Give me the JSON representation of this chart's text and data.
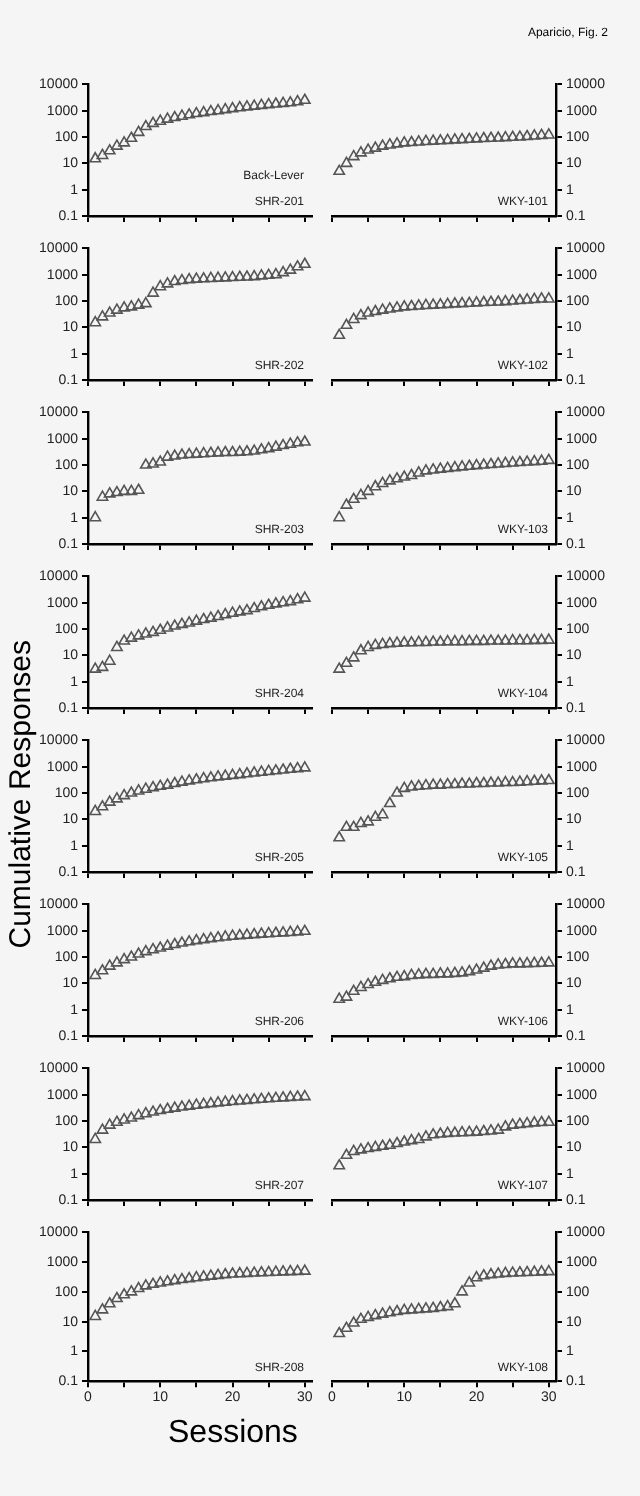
{
  "chart_data": [
    {
      "type": "scatter",
      "annotations": [
        "Back-Lever",
        "SHR-201"
      ],
      "x": [
        1,
        2,
        3,
        4,
        5,
        6,
        7,
        8,
        9,
        10,
        11,
        12,
        13,
        14,
        15,
        16,
        17,
        18,
        19,
        20,
        21,
        22,
        23,
        24,
        25,
        26,
        27,
        28,
        29,
        30
      ],
      "values": [
        15,
        20,
        30,
        45,
        60,
        90,
        150,
        250,
        330,
        400,
        480,
        550,
        620,
        700,
        780,
        850,
        930,
        1000,
        1100,
        1200,
        1300,
        1400,
        1500,
        1600,
        1700,
        1800,
        1900,
        2000,
        2200,
        2500
      ],
      "color": "#555555",
      "marker": "triangle",
      "log": "y",
      "xlim": [
        0,
        31
      ],
      "ylim": [
        0.1,
        10000
      ],
      "xticks": [
        {
          "value": 0,
          "label": null
        },
        {
          "value": 5,
          "label": null
        },
        {
          "value": 10,
          "label": null
        },
        {
          "value": 15,
          "label": null
        },
        {
          "value": 20,
          "label": null
        },
        {
          "value": 25,
          "label": null
        },
        {
          "value": 30,
          "label": null
        }
      ],
      "yticks": [
        0.1,
        1,
        10,
        100,
        1000,
        10000
      ],
      "tick_labels": "y"
    },
    {
      "type": "scatter",
      "title": "Aparicio, Fig. 2",
      "annotations": [
        "WKY-101"
      ],
      "x": [
        1,
        2,
        3,
        4,
        5,
        6,
        7,
        8,
        9,
        10,
        11,
        12,
        13,
        14,
        15,
        16,
        17,
        18,
        19,
        20,
        21,
        22,
        23,
        24,
        25,
        26,
        27,
        28,
        29,
        30
      ],
      "values": [
        5,
        10,
        18,
        25,
        32,
        38,
        45,
        50,
        55,
        60,
        62,
        65,
        68,
        70,
        72,
        75,
        78,
        80,
        82,
        85,
        88,
        90,
        92,
        95,
        98,
        100,
        105,
        110,
        115,
        120
      ],
      "color": "#555555",
      "marker": "triangle",
      "log": "y",
      "xlim": [
        0,
        31
      ],
      "ylim": [
        0.1,
        10000
      ],
      "xticks": [
        {
          "value": 0,
          "label": null
        },
        {
          "value": 5,
          "label": null
        },
        {
          "value": 10,
          "label": null
        },
        {
          "value": 15,
          "label": null
        },
        {
          "value": 20,
          "label": null
        },
        {
          "value": 25,
          "label": null
        },
        {
          "value": 30,
          "label": null
        }
      ],
      "yticks": [
        0.1,
        1,
        10,
        100,
        1000,
        10000
      ],
      "tick_labels": "y"
    },
    {
      "type": "scatter",
      "annotations": [
        "SHR-202"
      ],
      "x": [
        1,
        2,
        3,
        4,
        5,
        6,
        7,
        8,
        9,
        10,
        11,
        12,
        13,
        14,
        15,
        16,
        17,
        18,
        19,
        20,
        21,
        22,
        23,
        24,
        25,
        26,
        27,
        28,
        29,
        30
      ],
      "values": [
        15,
        25,
        35,
        45,
        55,
        60,
        70,
        80,
        200,
        350,
        450,
        550,
        600,
        650,
        680,
        700,
        720,
        740,
        760,
        780,
        800,
        820,
        850,
        900,
        950,
        1000,
        1200,
        1500,
        2000,
        2500
      ],
      "color": "#555555",
      "marker": "triangle",
      "log": "y",
      "xlim": [
        0,
        31
      ],
      "ylim": [
        0.1,
        10000
      ],
      "xticks": [
        {
          "value": 0,
          "label": null
        },
        {
          "value": 5,
          "label": null
        },
        {
          "value": 10,
          "label": null
        },
        {
          "value": 15,
          "label": null
        },
        {
          "value": 20,
          "label": null
        },
        {
          "value": 25,
          "label": null
        },
        {
          "value": 30,
          "label": null
        }
      ],
      "yticks": [
        0.1,
        1,
        10,
        100,
        1000,
        10000
      ],
      "tick_labels": "y"
    },
    {
      "type": "scatter",
      "annotations": [
        "WKY-102"
      ],
      "x": [
        1,
        2,
        3,
        4,
        5,
        6,
        7,
        8,
        9,
        10,
        11,
        12,
        13,
        14,
        15,
        16,
        17,
        18,
        19,
        20,
        21,
        22,
        23,
        24,
        25,
        26,
        27,
        28,
        29,
        30
      ],
      "values": [
        5,
        12,
        20,
        28,
        35,
        40,
        45,
        50,
        55,
        60,
        62,
        65,
        68,
        70,
        72,
        75,
        78,
        80,
        82,
        85,
        88,
        90,
        92,
        95,
        100,
        105,
        110,
        115,
        120,
        120
      ],
      "color": "#555555",
      "marker": "triangle",
      "log": "y",
      "xlim": [
        0,
        31
      ],
      "ylim": [
        0.1,
        10000
      ],
      "xticks": [
        {
          "value": 0,
          "label": null
        },
        {
          "value": 5,
          "label": null
        },
        {
          "value": 10,
          "label": null
        },
        {
          "value": 15,
          "label": null
        },
        {
          "value": 20,
          "label": null
        },
        {
          "value": 25,
          "label": null
        },
        {
          "value": 30,
          "label": null
        }
      ],
      "yticks": [
        0.1,
        1,
        10,
        100,
        1000,
        10000
      ],
      "tick_labels": "y"
    },
    {
      "type": "scatter",
      "annotations": [
        "SHR-203"
      ],
      "x": [
        1,
        2,
        3,
        4,
        5,
        6,
        7,
        8,
        9,
        10,
        11,
        12,
        13,
        14,
        15,
        16,
        17,
        18,
        19,
        20,
        21,
        22,
        23,
        24,
        25,
        26,
        27,
        28,
        29,
        30
      ],
      "values": [
        1,
        6,
        8,
        9,
        10,
        10,
        11,
        100,
        110,
        130,
        200,
        220,
        240,
        250,
        260,
        270,
        280,
        290,
        300,
        300,
        310,
        320,
        340,
        380,
        420,
        480,
        550,
        620,
        700,
        750
      ],
      "color": "#555555",
      "marker": "triangle",
      "log": "y",
      "xlim": [
        0,
        31
      ],
      "ylim": [
        0.1,
        10000
      ],
      "xticks": [
        {
          "value": 0,
          "label": null
        },
        {
          "value": 5,
          "label": null
        },
        {
          "value": 10,
          "label": null
        },
        {
          "value": 15,
          "label": null
        },
        {
          "value": 20,
          "label": null
        },
        {
          "value": 25,
          "label": null
        },
        {
          "value": 30,
          "label": null
        }
      ],
      "yticks": [
        0.1,
        1,
        10,
        100,
        1000,
        10000
      ],
      "tick_labels": "y"
    },
    {
      "type": "scatter",
      "annotations": [
        "WKY-103"
      ],
      "x": [
        1,
        2,
        3,
        4,
        5,
        6,
        7,
        8,
        9,
        10,
        11,
        12,
        13,
        14,
        15,
        16,
        17,
        18,
        19,
        20,
        21,
        22,
        23,
        24,
        25,
        26,
        27,
        28,
        29,
        30
      ],
      "values": [
        1,
        3,
        5,
        7,
        10,
        15,
        20,
        25,
        30,
        35,
        40,
        50,
        60,
        65,
        70,
        75,
        80,
        85,
        90,
        95,
        100,
        105,
        110,
        115,
        120,
        125,
        130,
        135,
        140,
        150
      ],
      "color": "#555555",
      "marker": "triangle",
      "log": "y",
      "xlim": [
        0,
        31
      ],
      "ylim": [
        0.1,
        10000
      ],
      "xticks": [
        {
          "value": 0,
          "label": null
        },
        {
          "value": 5,
          "label": null
        },
        {
          "value": 10,
          "label": null
        },
        {
          "value": 15,
          "label": null
        },
        {
          "value": 20,
          "label": null
        },
        {
          "value": 25,
          "label": null
        },
        {
          "value": 30,
          "label": null
        }
      ],
      "yticks": [
        0.1,
        1,
        10,
        100,
        1000,
        10000
      ],
      "tick_labels": "y"
    },
    {
      "type": "scatter",
      "annotations": [
        "SHR-204"
      ],
      "x": [
        1,
        2,
        3,
        4,
        5,
        6,
        7,
        8,
        9,
        10,
        11,
        12,
        13,
        14,
        15,
        16,
        17,
        18,
        19,
        20,
        21,
        22,
        23,
        24,
        25,
        26,
        27,
        28,
        29,
        30
      ],
      "values": [
        3,
        3.5,
        6,
        20,
        35,
        45,
        55,
        65,
        75,
        90,
        110,
        130,
        150,
        170,
        200,
        230,
        260,
        300,
        350,
        400,
        450,
        500,
        600,
        700,
        800,
        900,
        1000,
        1100,
        1300,
        1500
      ],
      "color": "#555555",
      "marker": "triangle",
      "log": "y",
      "xlim": [
        0,
        31
      ],
      "ylim": [
        0.1,
        10000
      ],
      "xticks": [
        {
          "value": 0,
          "label": null
        },
        {
          "value": 5,
          "label": null
        },
        {
          "value": 10,
          "label": null
        },
        {
          "value": 15,
          "label": null
        },
        {
          "value": 20,
          "label": null
        },
        {
          "value": 25,
          "label": null
        },
        {
          "value": 30,
          "label": null
        }
      ],
      "yticks": [
        0.1,
        1,
        10,
        100,
        1000,
        10000
      ],
      "tick_labels": "y"
    },
    {
      "type": "scatter",
      "annotations": [
        "WKY-104"
      ],
      "x": [
        1,
        2,
        3,
        4,
        5,
        6,
        7,
        8,
        9,
        10,
        11,
        12,
        13,
        14,
        15,
        16,
        17,
        18,
        19,
        20,
        21,
        22,
        23,
        24,
        25,
        26,
        27,
        28,
        29,
        30
      ],
      "values": [
        3,
        5,
        8,
        15,
        20,
        24,
        26,
        28,
        29,
        30,
        30,
        31,
        31,
        32,
        32,
        33,
        33,
        33,
        34,
        34,
        34,
        35,
        35,
        35,
        36,
        36,
        36,
        37,
        37,
        38
      ],
      "color": "#555555",
      "marker": "triangle",
      "log": "y",
      "xlim": [
        0,
        31
      ],
      "ylim": [
        0.1,
        10000
      ],
      "xticks": [
        {
          "value": 0,
          "label": null
        },
        {
          "value": 5,
          "label": null
        },
        {
          "value": 10,
          "label": null
        },
        {
          "value": 15,
          "label": null
        },
        {
          "value": 20,
          "label": null
        },
        {
          "value": 25,
          "label": null
        },
        {
          "value": 30,
          "label": null
        }
      ],
      "yticks": [
        0.1,
        1,
        10,
        100,
        1000,
        10000
      ],
      "tick_labels": "y"
    },
    {
      "type": "scatter",
      "ylabel": "Cumulative Responses",
      "annotations": [
        "SHR-205"
      ],
      "x": [
        1,
        2,
        3,
        4,
        5,
        6,
        7,
        8,
        9,
        10,
        11,
        12,
        13,
        14,
        15,
        16,
        17,
        18,
        19,
        20,
        21,
        22,
        23,
        24,
        25,
        26,
        27,
        28,
        29,
        30
      ],
      "values": [
        20,
        30,
        45,
        60,
        80,
        100,
        120,
        140,
        160,
        180,
        200,
        230,
        260,
        290,
        320,
        350,
        380,
        410,
        440,
        470,
        500,
        540,
        580,
        620,
        660,
        700,
        750,
        800,
        850,
        900
      ],
      "color": "#555555",
      "marker": "triangle",
      "log": "y",
      "xlim": [
        0,
        31
      ],
      "ylim": [
        0.1,
        10000
      ],
      "xticks": [
        {
          "value": 0,
          "label": null
        },
        {
          "value": 5,
          "label": null
        },
        {
          "value": 10,
          "label": null
        },
        {
          "value": 15,
          "label": null
        },
        {
          "value": 20,
          "label": null
        },
        {
          "value": 25,
          "label": null
        },
        {
          "value": 30,
          "label": null
        }
      ],
      "yticks": [
        0.1,
        1,
        10,
        100,
        1000,
        10000
      ],
      "tick_labels": "y"
    },
    {
      "type": "scatter",
      "annotations": [
        "WKY-105"
      ],
      "x": [
        1,
        2,
        3,
        4,
        5,
        6,
        7,
        8,
        9,
        10,
        11,
        12,
        13,
        14,
        15,
        16,
        17,
        18,
        19,
        20,
        21,
        22,
        23,
        24,
        25,
        26,
        27,
        28,
        29,
        30
      ],
      "values": [
        2,
        5,
        5,
        7,
        8,
        12,
        15,
        40,
        100,
        150,
        170,
        180,
        190,
        200,
        200,
        210,
        210,
        220,
        220,
        230,
        230,
        240,
        240,
        250,
        250,
        260,
        270,
        280,
        290,
        300
      ],
      "color": "#555555",
      "marker": "triangle",
      "log": "y",
      "xlim": [
        0,
        31
      ],
      "ylim": [
        0.1,
        10000
      ],
      "xticks": [
        {
          "value": 0,
          "label": null
        },
        {
          "value": 5,
          "label": null
        },
        {
          "value": 10,
          "label": null
        },
        {
          "value": 15,
          "label": null
        },
        {
          "value": 20,
          "label": null
        },
        {
          "value": 25,
          "label": null
        },
        {
          "value": 30,
          "label": null
        }
      ],
      "yticks": [
        0.1,
        1,
        10,
        100,
        1000,
        10000
      ],
      "tick_labels": "y"
    },
    {
      "type": "scatter",
      "annotations": [
        "SHR-206"
      ],
      "x": [
        1,
        2,
        3,
        4,
        5,
        6,
        7,
        8,
        9,
        10,
        11,
        12,
        13,
        14,
        15,
        16,
        17,
        18,
        19,
        20,
        21,
        22,
        23,
        24,
        25,
        26,
        27,
        28,
        29,
        30
      ],
      "values": [
        20,
        30,
        45,
        60,
        80,
        100,
        130,
        160,
        190,
        220,
        260,
        300,
        340,
        380,
        420,
        460,
        500,
        540,
        580,
        620,
        650,
        680,
        710,
        740,
        770,
        800,
        830,
        860,
        900,
        950
      ],
      "color": "#555555",
      "marker": "triangle",
      "log": "y",
      "xlim": [
        0,
        31
      ],
      "ylim": [
        0.1,
        10000
      ],
      "xticks": [
        {
          "value": 0,
          "label": null
        },
        {
          "value": 5,
          "label": null
        },
        {
          "value": 10,
          "label": null
        },
        {
          "value": 15,
          "label": null
        },
        {
          "value": 20,
          "label": null
        },
        {
          "value": 25,
          "label": null
        },
        {
          "value": 30,
          "label": null
        }
      ],
      "yticks": [
        0.1,
        1,
        10,
        100,
        1000,
        10000
      ],
      "tick_labels": "y"
    },
    {
      "type": "scatter",
      "annotations": [
        "WKY-106"
      ],
      "x": [
        1,
        2,
        3,
        4,
        5,
        6,
        7,
        8,
        9,
        10,
        11,
        12,
        13,
        14,
        15,
        16,
        17,
        18,
        19,
        20,
        21,
        22,
        23,
        24,
        25,
        26,
        27,
        28,
        29,
        30
      ],
      "values": [
        2.5,
        3,
        5,
        7,
        9,
        11,
        13,
        15,
        17,
        18,
        20,
        21,
        22,
        22,
        23,
        23,
        24,
        25,
        28,
        32,
        38,
        45,
        50,
        52,
        55,
        55,
        56,
        57,
        58,
        60
      ],
      "color": "#555555",
      "marker": "triangle",
      "log": "y",
      "xlim": [
        0,
        31
      ],
      "ylim": [
        0.1,
        10000
      ],
      "xticks": [
        {
          "value": 0,
          "label": null
        },
        {
          "value": 5,
          "label": null
        },
        {
          "value": 10,
          "label": null
        },
        {
          "value": 15,
          "label": null
        },
        {
          "value": 20,
          "label": null
        },
        {
          "value": 25,
          "label": null
        },
        {
          "value": 30,
          "label": null
        }
      ],
      "yticks": [
        0.1,
        1,
        10,
        100,
        1000,
        10000
      ],
      "tick_labels": "y"
    },
    {
      "type": "scatter",
      "annotations": [
        "SHR-207"
      ],
      "x": [
        1,
        2,
        3,
        4,
        5,
        6,
        7,
        8,
        9,
        10,
        11,
        12,
        13,
        14,
        15,
        16,
        17,
        18,
        19,
        20,
        21,
        22,
        23,
        24,
        25,
        26,
        27,
        28,
        29,
        30
      ],
      "values": [
        20,
        45,
        70,
        90,
        110,
        130,
        160,
        190,
        220,
        250,
        280,
        310,
        340,
        370,
        400,
        430,
        460,
        490,
        520,
        550,
        580,
        610,
        640,
        670,
        700,
        730,
        760,
        790,
        820,
        850
      ],
      "color": "#555555",
      "marker": "triangle",
      "log": "y",
      "xlim": [
        0,
        31
      ],
      "ylim": [
        0.1,
        10000
      ],
      "xticks": [
        {
          "value": 0,
          "label": null
        },
        {
          "value": 5,
          "label": null
        },
        {
          "value": 10,
          "label": null
        },
        {
          "value": 15,
          "label": null
        },
        {
          "value": 20,
          "label": null
        },
        {
          "value": 25,
          "label": null
        },
        {
          "value": 30,
          "label": null
        }
      ],
      "yticks": [
        0.1,
        1,
        10,
        100,
        1000,
        10000
      ],
      "tick_labels": "y"
    },
    {
      "type": "scatter",
      "annotations": [
        "WKY-107"
      ],
      "x": [
        1,
        2,
        3,
        4,
        5,
        6,
        7,
        8,
        9,
        10,
        11,
        12,
        13,
        14,
        15,
        16,
        17,
        18,
        19,
        20,
        21,
        22,
        23,
        24,
        25,
        26,
        27,
        28,
        29,
        30
      ],
      "values": [
        2,
        5,
        7,
        8,
        9,
        10,
        11,
        12,
        14,
        16,
        18,
        20,
        25,
        30,
        32,
        34,
        35,
        36,
        37,
        38,
        40,
        42,
        45,
        60,
        70,
        75,
        80,
        85,
        88,
        90
      ],
      "color": "#555555",
      "marker": "triangle",
      "log": "y",
      "xlim": [
        0,
        31
      ],
      "ylim": [
        0.1,
        10000
      ],
      "xticks": [
        {
          "value": 0,
          "label": null
        },
        {
          "value": 5,
          "label": null
        },
        {
          "value": 10,
          "label": null
        },
        {
          "value": 15,
          "label": null
        },
        {
          "value": 20,
          "label": null
        },
        {
          "value": 25,
          "label": null
        },
        {
          "value": 30,
          "label": null
        }
      ],
      "yticks": [
        0.1,
        1,
        10,
        100,
        1000,
        10000
      ],
      "tick_labels": "y"
    },
    {
      "type": "scatter",
      "xlabel": "Sessions",
      "annotations": [
        "SHR-208"
      ],
      "x": [
        1,
        2,
        3,
        4,
        5,
        6,
        7,
        8,
        9,
        10,
        11,
        12,
        13,
        14,
        15,
        16,
        17,
        18,
        19,
        20,
        21,
        22,
        23,
        24,
        25,
        26,
        27,
        28,
        29,
        30
      ],
      "values": [
        15,
        25,
        40,
        60,
        80,
        100,
        130,
        160,
        180,
        200,
        220,
        240,
        260,
        280,
        300,
        320,
        340,
        360,
        380,
        400,
        410,
        420,
        430,
        440,
        450,
        460,
        470,
        480,
        490,
        500
      ],
      "color": "#555555",
      "marker": "triangle",
      "log": "y",
      "xlim": [
        0,
        31
      ],
      "ylim": [
        0.1,
        10000
      ],
      "xticks": [
        0,
        {
          "value": 5,
          "label": null
        },
        10,
        {
          "value": 15,
          "label": null
        },
        20,
        {
          "value": 25,
          "label": null
        },
        30
      ],
      "yticks": [
        0.1,
        1,
        10,
        100,
        1000,
        10000
      ]
    },
    {
      "type": "scatter",
      "annotations": [
        "WKY-108"
      ],
      "x": [
        1,
        2,
        3,
        4,
        5,
        6,
        7,
        8,
        9,
        10,
        11,
        12,
        13,
        14,
        15,
        16,
        17,
        18,
        19,
        20,
        21,
        22,
        23,
        24,
        25,
        26,
        27,
        28,
        29,
        30
      ],
      "values": [
        4,
        6,
        9,
        12,
        14,
        16,
        18,
        20,
        22,
        24,
        25,
        26,
        27,
        28,
        30,
        32,
        40,
        100,
        200,
        300,
        350,
        380,
        400,
        420,
        430,
        440,
        450,
        460,
        470,
        480
      ],
      "color": "#555555",
      "marker": "triangle",
      "log": "y",
      "xlim": [
        0,
        31
      ],
      "ylim": [
        0.1,
        10000
      ],
      "xticks": [
        0,
        {
          "value": 5,
          "label": null
        },
        10,
        {
          "value": 15,
          "label": null
        },
        20,
        {
          "value": 25,
          "label": null
        },
        30
      ],
      "yticks": [
        0.1,
        1,
        10,
        100,
        1000,
        10000
      ]
    }
  ]
}
